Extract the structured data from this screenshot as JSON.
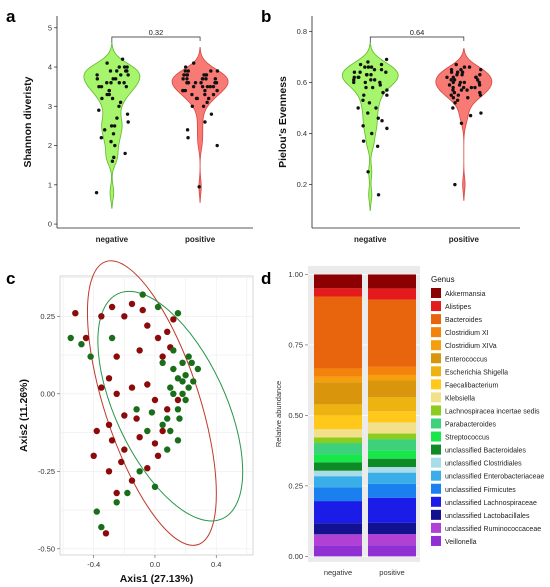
{
  "panel_labels": [
    "a",
    "b",
    "c",
    "d"
  ],
  "chart_data": [
    {
      "panel": "a",
      "type": "violin",
      "ylabel": "Shannon diveristy",
      "ylim": [
        -0.1,
        5.3
      ],
      "yticks": [
        "0",
        "1",
        "2",
        "3",
        "4",
        "5"
      ],
      "categories": [
        "negative",
        "positive"
      ],
      "annotation": "0.32",
      "colors": {
        "negative": "#a6f56c",
        "positive": "#f87a74"
      },
      "series": [
        {
          "category": "negative",
          "values": [
            3.9,
            3.8,
            4.0,
            3.7,
            3.6,
            3.5,
            3.9,
            4.1,
            3.3,
            3.2,
            3.0,
            2.8,
            2.6,
            2.4,
            2.2,
            2.0,
            2.3,
            2.5,
            2.1,
            1.8,
            1.6,
            0.8,
            3.6,
            3.4,
            3.1,
            3.9,
            4.0,
            3.8,
            3.7,
            4.2,
            3.5,
            3.3,
            2.9,
            2.7,
            3.6,
            3.8,
            4.0,
            3.9,
            3.7,
            3.4,
            2.5,
            1.7,
            3.2,
            3.6,
            3.5,
            3.9
          ]
        },
        {
          "category": "positive",
          "values": [
            3.9,
            3.8,
            3.7,
            3.6,
            3.5,
            3.4,
            3.3,
            3.2,
            3.0,
            2.8,
            2.6,
            2.4,
            2.2,
            3.9,
            4.0,
            3.8,
            3.7,
            3.6,
            3.5,
            3.4,
            3.3,
            3.6,
            3.8,
            3.7,
            3.9,
            3.5,
            3.4,
            3.2,
            3.6,
            3.8,
            4.1,
            3.7,
            3.5,
            3.3,
            3.1,
            3.6,
            3.8,
            3.9,
            3.7,
            3.4,
            0.95,
            2.0,
            3.0,
            3.5,
            3.8,
            3.6,
            3.7,
            3.4,
            3.2
          ]
        }
      ]
    },
    {
      "panel": "b",
      "type": "violin",
      "ylabel": "Pielou's Evenness",
      "ylim": [
        0.03,
        0.86
      ],
      "yticks": [
        "0.2",
        "0.4",
        "0.6",
        "0.8"
      ],
      "categories": [
        "negative",
        "positive"
      ],
      "annotation": "0.64",
      "colors": {
        "negative": "#a6f56c",
        "positive": "#f87a74"
      },
      "series": [
        {
          "category": "negative",
          "values": [
            0.66,
            0.65,
            0.64,
            0.63,
            0.62,
            0.61,
            0.6,
            0.58,
            0.56,
            0.55,
            0.53,
            0.5,
            0.48,
            0.46,
            0.43,
            0.4,
            0.37,
            0.35,
            0.16,
            0.25,
            0.67,
            0.68,
            0.66,
            0.64,
            0.62,
            0.6,
            0.59,
            0.57,
            0.55,
            0.52,
            0.5,
            0.65,
            0.63,
            0.61,
            0.69,
            0.66,
            0.64,
            0.62,
            0.6,
            0.58,
            0.45,
            0.42,
            0.67,
            0.63,
            0.61
          ]
        },
        {
          "category": "positive",
          "values": [
            0.66,
            0.65,
            0.64,
            0.63,
            0.62,
            0.61,
            0.6,
            0.59,
            0.58,
            0.57,
            0.56,
            0.55,
            0.54,
            0.52,
            0.5,
            0.48,
            0.44,
            0.66,
            0.64,
            0.62,
            0.6,
            0.58,
            0.56,
            0.54,
            0.63,
            0.61,
            0.59,
            0.57,
            0.65,
            0.67,
            0.62,
            0.6,
            0.58,
            0.55,
            0.53,
            0.2,
            0.47,
            0.64,
            0.62,
            0.6,
            0.58,
            0.65,
            0.63,
            0.61,
            0.59,
            0.57,
            0.55
          ]
        }
      ]
    },
    {
      "panel": "c",
      "type": "scatter",
      "xlabel": "Axis1 (27.13%)",
      "ylabel": "Axis2 (11.26%)",
      "xlim": [
        -0.62,
        0.64
      ],
      "ylim": [
        -0.52,
        0.38
      ],
      "xticks": [
        "-0.4",
        "0.0",
        "0.4"
      ],
      "yticks": [
        "-0.50",
        "-0.25",
        "0.00",
        "0.25"
      ],
      "colors": {
        "red": "#8b0a0a",
        "green": "#1a6e1a"
      },
      "ellipses": [
        {
          "color": "#c0392b",
          "cx": -0.02,
          "cy": -0.03,
          "rx": 0.31,
          "ry": 0.48,
          "angle": -18
        },
        {
          "color": "#27964a",
          "cx": 0.1,
          "cy": -0.04,
          "rx": 0.36,
          "ry": 0.4,
          "angle": -25
        }
      ],
      "series": [
        {
          "name": "red",
          "points": [
            [
              -0.52,
              0.26
            ],
            [
              -0.45,
              0.18
            ],
            [
              -0.35,
              0.25
            ],
            [
              -0.28,
              0.28
            ],
            [
              -0.2,
              0.25
            ],
            [
              -0.08,
              0.27
            ],
            [
              -0.05,
              0.22
            ],
            [
              0.02,
              0.18
            ],
            [
              0.08,
              0.2
            ],
            [
              0.1,
              0.15
            ],
            [
              0.05,
              0.12
            ],
            [
              -0.1,
              0.14
            ],
            [
              -0.25,
              0.12
            ],
            [
              -0.3,
              0.05
            ],
            [
              -0.35,
              0.02
            ],
            [
              -0.25,
              0.0
            ],
            [
              -0.15,
              0.02
            ],
            [
              -0.05,
              0.03
            ],
            [
              0.0,
              -0.02
            ],
            [
              0.08,
              -0.05
            ],
            [
              -0.2,
              -0.07
            ],
            [
              -0.3,
              -0.1
            ],
            [
              -0.38,
              -0.12
            ],
            [
              -0.28,
              -0.15
            ],
            [
              -0.2,
              -0.18
            ],
            [
              -0.1,
              -0.14
            ],
            [
              0.0,
              -0.16
            ],
            [
              0.05,
              -0.12
            ],
            [
              -0.12,
              -0.08
            ],
            [
              -0.22,
              -0.22
            ],
            [
              -0.3,
              -0.25
            ],
            [
              -0.15,
              -0.28
            ],
            [
              -0.05,
              -0.24
            ],
            [
              0.02,
              -0.2
            ],
            [
              -0.4,
              -0.2
            ],
            [
              -0.25,
              -0.32
            ],
            [
              -0.32,
              -0.45
            ],
            [
              0.12,
              0.24
            ],
            [
              -0.15,
              0.29
            ],
            [
              0.15,
              -0.02
            ]
          ]
        },
        {
          "name": "green",
          "points": [
            [
              -0.55,
              0.18
            ],
            [
              -0.48,
              0.16
            ],
            [
              -0.42,
              0.12
            ],
            [
              -0.28,
              0.18
            ],
            [
              -0.08,
              0.32
            ],
            [
              0.02,
              0.28
            ],
            [
              0.15,
              0.26
            ],
            [
              0.05,
              0.1
            ],
            [
              0.12,
              0.08
            ],
            [
              0.18,
              0.1
            ],
            [
              0.15,
              0.05
            ],
            [
              0.2,
              0.06
            ],
            [
              0.22,
              0.02
            ],
            [
              0.18,
              0.0
            ],
            [
              0.2,
              -0.02
            ],
            [
              0.15,
              -0.05
            ],
            [
              0.1,
              0.02
            ],
            [
              0.25,
              0.04
            ],
            [
              0.28,
              0.08
            ],
            [
              0.22,
              0.12
            ],
            [
              0.12,
              0.14
            ],
            [
              0.08,
              -0.08
            ],
            [
              0.05,
              -0.1
            ],
            [
              0.1,
              -0.12
            ],
            [
              0.15,
              -0.15
            ],
            [
              0.08,
              -0.18
            ],
            [
              -0.05,
              -0.12
            ],
            [
              -0.12,
              -0.05
            ],
            [
              -0.02,
              -0.06
            ],
            [
              0.0,
              -0.3
            ],
            [
              -0.1,
              -0.25
            ],
            [
              -0.18,
              -0.32
            ],
            [
              -0.25,
              -0.35
            ],
            [
              -0.38,
              -0.38
            ],
            [
              -0.35,
              -0.43
            ],
            [
              0.12,
              0.0
            ],
            [
              0.18,
              0.04
            ],
            [
              0.16,
              -0.08
            ],
            [
              0.24,
              0.1
            ]
          ]
        }
      ]
    },
    {
      "panel": "d",
      "type": "stacked_bar",
      "ylabel": "Relative abundance",
      "ylim": [
        -0.02,
        1.03
      ],
      "yticks": [
        "0.00",
        "0.25",
        "0.50",
        "0.75",
        "1.00"
      ],
      "categories": [
        "negative",
        "positive"
      ],
      "legend_title": "Genus",
      "series": [
        {
          "name": "Akkermansia",
          "color": "#8b0000",
          "values": [
            0.05,
            0.05
          ]
        },
        {
          "name": "Alistipes",
          "color": "#e41a1c",
          "values": [
            0.03,
            0.04
          ]
        },
        {
          "name": "Bacteroides",
          "color": "#e8650e",
          "values": [
            0.26,
            0.24
          ]
        },
        {
          "name": "Clostridium XI",
          "color": "#f4830b",
          "values": [
            0.03,
            0.03
          ]
        },
        {
          "name": "Clostridium XIVa",
          "color": "#f59f0f",
          "values": [
            0.02,
            0.02
          ]
        },
        {
          "name": "Enterococcus",
          "color": "#d9950b",
          "values": [
            0.08,
            0.06
          ]
        },
        {
          "name": "Escherichia Shigella",
          "color": "#edb310",
          "values": [
            0.04,
            0.05
          ]
        },
        {
          "name": "Faecalibacterium",
          "color": "#ffc81a",
          "values": [
            0.05,
            0.04
          ]
        },
        {
          "name": "Klebsiella",
          "color": "#f2e08a",
          "values": [
            0.03,
            0.04
          ]
        },
        {
          "name": "Lachnospiracea incertae sedis",
          "color": "#8ccc1c",
          "values": [
            0.02,
            0.02
          ]
        },
        {
          "name": "Parabacteroides",
          "color": "#3cd17a",
          "values": [
            0.04,
            0.04
          ]
        },
        {
          "name": "Streptococcus",
          "color": "#19e64a",
          "values": [
            0.03,
            0.03
          ]
        },
        {
          "name": "unclassified Bacteroidales",
          "color": "#0e8a26",
          "values": [
            0.03,
            0.03
          ]
        },
        {
          "name": "unclassified Clostridiales",
          "color": "#a8dde8",
          "values": [
            0.02,
            0.02
          ]
        },
        {
          "name": "unclassified Enterobacteriaceae",
          "color": "#39aee8",
          "values": [
            0.04,
            0.04
          ]
        },
        {
          "name": "unclassified Firmicutes",
          "color": "#1a80f0",
          "values": [
            0.05,
            0.05
          ]
        },
        {
          "name": "unclassified Lachnospiraceae",
          "color": "#1c1ce8",
          "values": [
            0.08,
            0.09
          ]
        },
        {
          "name": "unclassified Lactobacillales",
          "color": "#121291",
          "values": [
            0.04,
            0.04
          ]
        },
        {
          "name": "unclassified Ruminococcaceae",
          "color": "#b140d4",
          "values": [
            0.04,
            0.04
          ]
        },
        {
          "name": "Veillonella",
          "color": "#8f2fd4",
          "values": [
            0.04,
            0.04
          ]
        }
      ]
    }
  ]
}
